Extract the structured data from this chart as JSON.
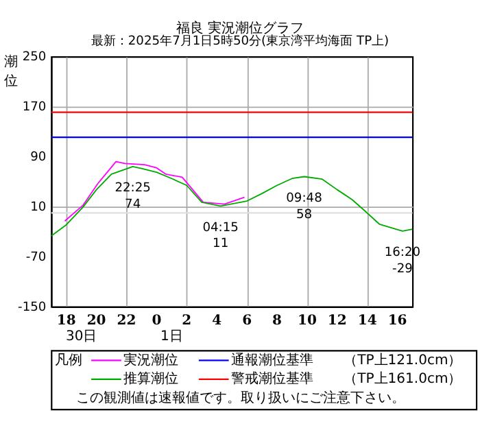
{
  "chart_data": {
    "type": "line",
    "title": "福良 実況潮位グラフ",
    "subtitle": "最新：2025年7月1日5時50分(東京湾平均海面 TP上)",
    "ylabel": "潮位",
    "legend_title": "凡例",
    "xlim": [
      "2025-06-30T17:00",
      "2025-07-01T17:00"
    ],
    "xticks": [
      {
        "value": "2025-06-30T18:00",
        "label": "18"
      },
      {
        "value": "2025-06-30T20:00",
        "label": "20"
      },
      {
        "value": "2025-06-30T22:00",
        "label": "22"
      },
      {
        "value": "2025-07-01T00:00",
        "label": "0"
      },
      {
        "value": "2025-07-01T02:00",
        "label": "2"
      },
      {
        "value": "2025-07-01T04:00",
        "label": "4"
      },
      {
        "value": "2025-07-01T06:00",
        "label": "6"
      },
      {
        "value": "2025-07-01T08:00",
        "label": "8"
      },
      {
        "value": "2025-07-01T10:00",
        "label": "10"
      },
      {
        "value": "2025-07-01T12:00",
        "label": "12"
      },
      {
        "value": "2025-07-01T14:00",
        "label": "14"
      },
      {
        "value": "2025-07-01T16:00",
        "label": "16"
      }
    ],
    "ylim": [
      -150,
      250
    ],
    "yticks": [
      -150,
      -70,
      10,
      90,
      170,
      250
    ],
    "grid": true,
    "legend": "bottom",
    "marker": "none",
    "line_style": "solid",
    "series": [
      {
        "name": "実況潮位",
        "color": "#ff00ff",
        "x": [
          "2025-06-30T17:54",
          "2025-06-30T19:06",
          "2025-06-30T20:06",
          "2025-06-30T21:18",
          "2025-06-30T21:54",
          "2025-06-30T23:12",
          "2025-07-01T00:00",
          "2025-07-01T00:36",
          "2025-07-01T01:42",
          "2025-07-01T03:06",
          "2025-07-01T04:00",
          "2025-07-01T04:30",
          "2025-07-01T05:50"
        ],
        "values": [
          -13,
          12,
          47,
          82,
          79,
          77,
          72,
          62,
          57,
          17,
          15,
          14,
          25
        ]
      },
      {
        "name": "推算潮位",
        "color": "#00aa00",
        "x": [
          "2025-06-30T17:00",
          "2025-06-30T18:00",
          "2025-06-30T19:06",
          "2025-06-30T20:00",
          "2025-06-30T21:00",
          "2025-06-30T22:25",
          "2025-06-30T23:00",
          "2025-07-01T00:00",
          "2025-07-01T01:00",
          "2025-07-01T02:00",
          "2025-07-01T03:00",
          "2025-07-01T04:15",
          "2025-07-01T06:00",
          "2025-07-01T07:00",
          "2025-07-01T08:00",
          "2025-07-01T09:00",
          "2025-07-01T09:48",
          "2025-07-01T11:00",
          "2025-07-01T12:00",
          "2025-07-01T13:00",
          "2025-07-01T13:48",
          "2025-07-01T14:48",
          "2025-07-01T16:20",
          "2025-07-01T17:00"
        ],
        "values": [
          -37,
          -19,
          9,
          37,
          62,
          74,
          71,
          65,
          55,
          44,
          17,
          11,
          19,
          31,
          44,
          55,
          58,
          54,
          37,
          21,
          4,
          -18,
          -29,
          -26
        ]
      }
    ],
    "ref_lines": [
      {
        "axis": "y",
        "value": 121,
        "label": "通報潮位基準",
        "color": "#0000ff"
      },
      {
        "axis": "y",
        "value": 161,
        "label": "警戒潮位基準",
        "color": "#ff0000"
      },
      {
        "axis": "y",
        "value": 0,
        "color": "#e0e0e0"
      }
    ],
    "annotations": [
      {
        "text": "22:25\n74",
        "x": "2025-06-30T22:25",
        "y": 74
      },
      {
        "text": "04:15\n11",
        "x": "2025-07-01T04:15",
        "y": 11
      },
      {
        "text": "09:48\n58",
        "x": "2025-07-01T09:48",
        "y": 58
      },
      {
        "text": "16:20\n-29",
        "x": "2025-07-01T16:20",
        "y": -29
      },
      "30日",
      "1日",
      "（TP上121.0cm）",
      "（TP上161.0cm）",
      "この観測値は速報値です。取り扱いにご注意下さい。"
    ]
  }
}
